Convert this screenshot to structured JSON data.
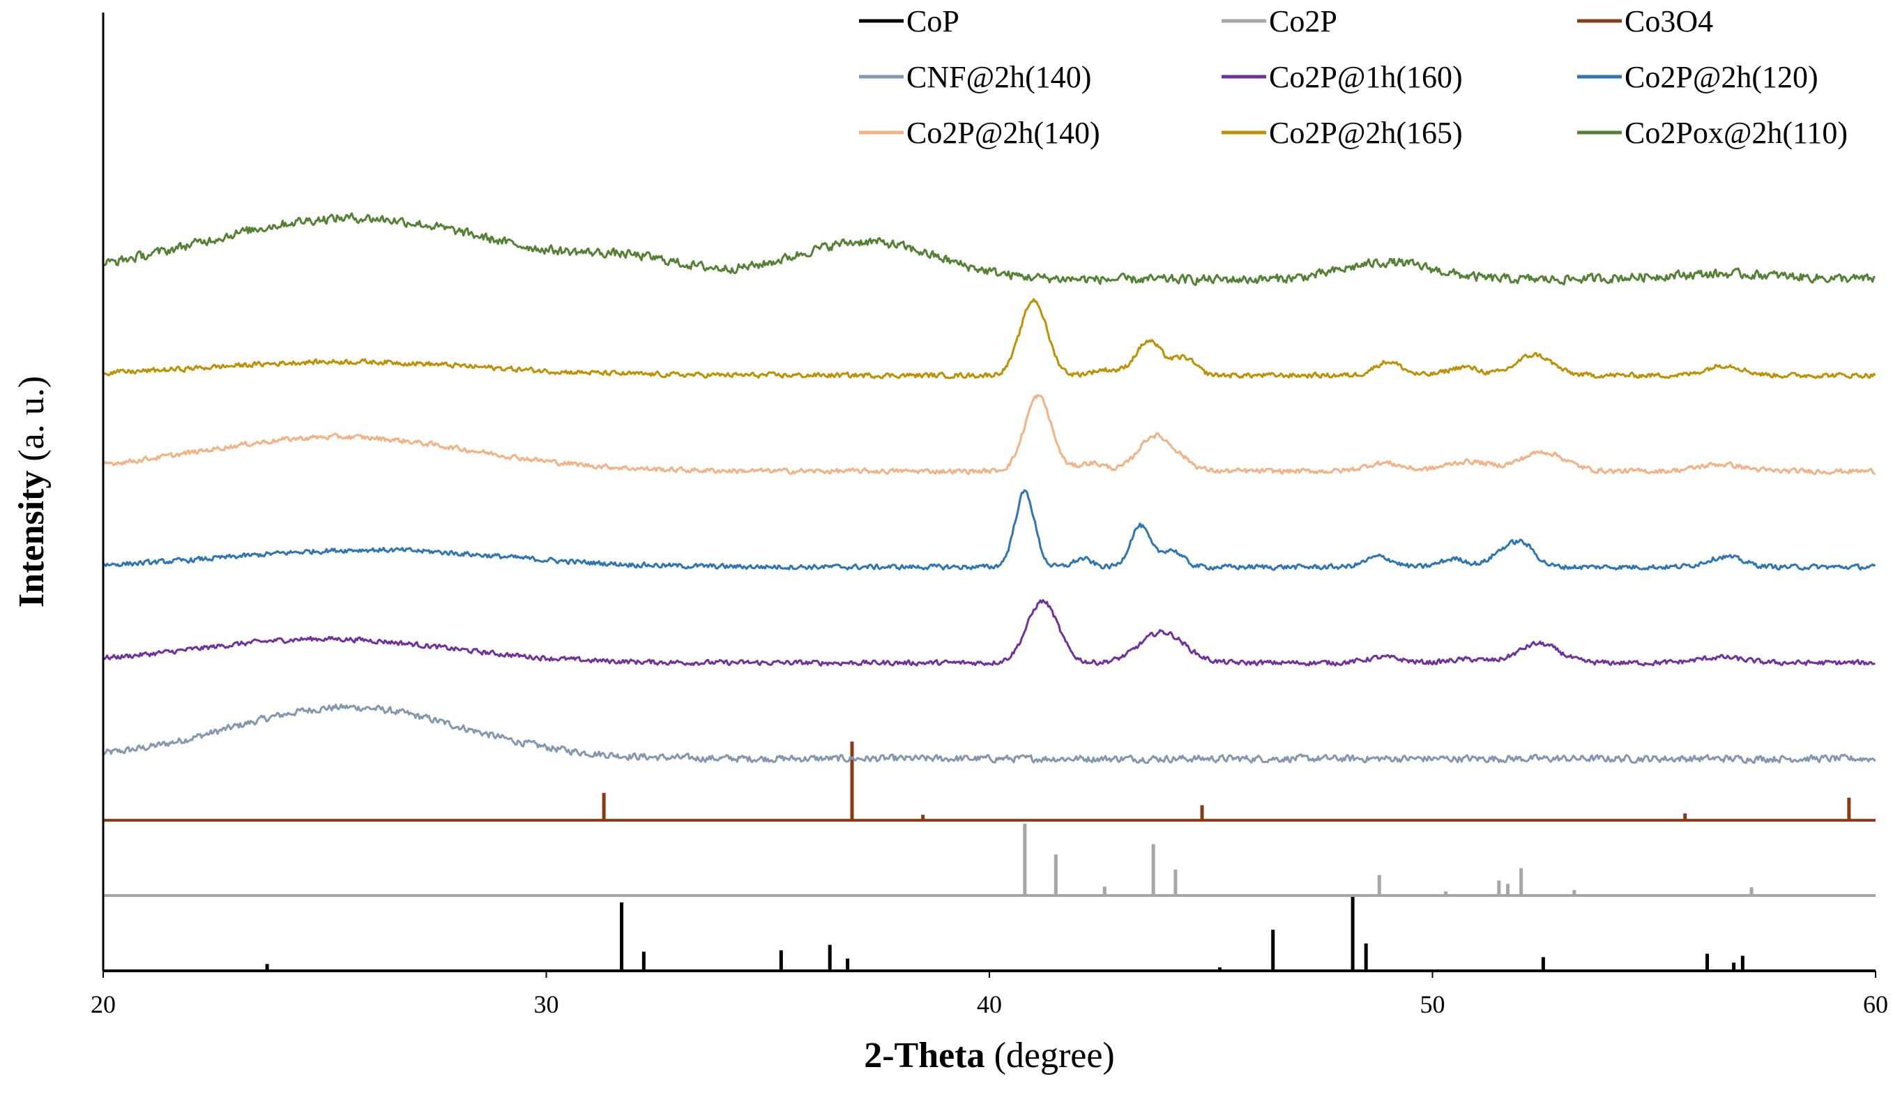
{
  "chart_data": {
    "type": "line",
    "title": "",
    "xlabel_bold": "2-Theta",
    "xlabel_rest": " (degree)",
    "ylabel_bold": "Intensity",
    "ylabel_rest": " (a. u.)",
    "xlim": [
      20,
      60
    ],
    "xticks": [
      20,
      30,
      40,
      50,
      60
    ],
    "legend_position": "top-right",
    "ylim": [
      0,
      14
    ],
    "series": [
      {
        "name": "CoP",
        "color": "#000000",
        "kind": "stick",
        "baseline": 0,
        "sticks": [
          [
            23.7,
            0.1
          ],
          [
            31.7,
            1.0
          ],
          [
            32.2,
            0.28
          ],
          [
            35.3,
            0.3
          ],
          [
            36.4,
            0.38
          ],
          [
            36.8,
            0.18
          ],
          [
            45.2,
            0.05
          ],
          [
            46.4,
            0.6
          ],
          [
            48.2,
            1.1
          ],
          [
            48.5,
            0.4
          ],
          [
            52.5,
            0.2
          ],
          [
            56.2,
            0.25
          ],
          [
            56.8,
            0.12
          ],
          [
            57.0,
            0.22
          ]
        ]
      },
      {
        "name": "Co2P",
        "color": "#a6a6a6",
        "kind": "stick",
        "baseline": 1.1,
        "sticks": [
          [
            40.8,
            1.05
          ],
          [
            41.5,
            0.6
          ],
          [
            42.6,
            0.13
          ],
          [
            43.7,
            0.75
          ],
          [
            44.2,
            0.38
          ],
          [
            48.8,
            0.3
          ],
          [
            50.3,
            0.06
          ],
          [
            51.5,
            0.22
          ],
          [
            51.7,
            0.17
          ],
          [
            52.0,
            0.4
          ],
          [
            53.2,
            0.08
          ],
          [
            57.2,
            0.12
          ]
        ]
      },
      {
        "name": "Co3O4",
        "color": "#8b3a14",
        "kind": "stick",
        "baseline": 2.2,
        "sticks": [
          [
            31.3,
            0.4
          ],
          [
            36.9,
            1.15
          ],
          [
            38.5,
            0.08
          ],
          [
            44.8,
            0.22
          ],
          [
            55.7,
            0.1
          ],
          [
            59.4,
            0.33
          ]
        ]
      },
      {
        "name": "CNF@2h(140)",
        "color": "#8497b0",
        "kind": "xrd",
        "baseline": 3.1,
        "noise": 0.07,
        "humps": [
          [
            25.5,
            0.75,
            2.6
          ]
        ],
        "peaks": []
      },
      {
        "name": "Co2P@1h(160)",
        "color": "#7030a0",
        "kind": "xrd",
        "baseline": 4.5,
        "noise": 0.05,
        "humps": [
          [
            25,
            0.35,
            2.8
          ],
          [
            30,
            0.0,
            1.0
          ]
        ],
        "peaks": [
          [
            41.2,
            0.9,
            0.35
          ],
          [
            43.9,
            0.45,
            0.5
          ],
          [
            48.9,
            0.08,
            0.4
          ],
          [
            50.8,
            0.05,
            0.4
          ],
          [
            52.4,
            0.28,
            0.45
          ],
          [
            56.5,
            0.08,
            0.5
          ]
        ]
      },
      {
        "name": "Co2P@2h(120)",
        "color": "#2e75b6",
        "kind": "xrd",
        "baseline": 5.9,
        "noise": 0.05,
        "humps": [
          [
            26,
            0.25,
            3.0
          ]
        ],
        "peaks": [
          [
            40.8,
            1.1,
            0.22
          ],
          [
            42.1,
            0.12,
            0.2
          ],
          [
            43.4,
            0.6,
            0.22
          ],
          [
            44.1,
            0.25,
            0.25
          ],
          [
            48.8,
            0.15,
            0.3
          ],
          [
            50.5,
            0.12,
            0.3
          ],
          [
            51.5,
            0.15,
            0.25
          ],
          [
            52.0,
            0.35,
            0.3
          ],
          [
            56.6,
            0.15,
            0.4
          ]
        ]
      },
      {
        "name": "Co2P@2h(140)",
        "color": "#f4b183",
        "kind": "xrd",
        "baseline": 7.3,
        "noise": 0.05,
        "humps": [
          [
            25.3,
            0.5,
            3.0
          ]
        ],
        "peaks": [
          [
            41.1,
            1.1,
            0.3
          ],
          [
            42.3,
            0.12,
            0.3
          ],
          [
            43.7,
            0.5,
            0.35
          ],
          [
            44.3,
            0.15,
            0.3
          ],
          [
            48.9,
            0.12,
            0.4
          ],
          [
            50.8,
            0.14,
            0.5
          ],
          [
            52.5,
            0.28,
            0.5
          ],
          [
            56.5,
            0.1,
            0.5
          ]
        ]
      },
      {
        "name": "Co2P@2h(165)",
        "color": "#bf9000",
        "kind": "xrd",
        "baseline": 8.7,
        "noise": 0.05,
        "humps": [
          [
            25.5,
            0.2,
            3.0
          ]
        ],
        "peaks": [
          [
            41.0,
            1.1,
            0.3
          ],
          [
            42.6,
            0.08,
            0.3
          ],
          [
            43.6,
            0.5,
            0.3
          ],
          [
            44.4,
            0.25,
            0.25
          ],
          [
            49.0,
            0.2,
            0.3
          ],
          [
            50.7,
            0.12,
            0.35
          ],
          [
            52.3,
            0.3,
            0.4
          ],
          [
            56.6,
            0.15,
            0.4
          ]
        ]
      },
      {
        "name": "Co2Pox@2h(110)",
        "color": "#548235",
        "kind": "xrd",
        "baseline": 10.1,
        "noise": 0.09,
        "humps": [
          [
            25.6,
            0.9,
            3.4
          ],
          [
            32.0,
            0.2,
            1.2
          ],
          [
            37.2,
            0.55,
            1.6
          ],
          [
            49.0,
            0.25,
            1.0
          ],
          [
            56.5,
            0.08,
            1.5
          ]
        ],
        "peaks": []
      }
    ]
  }
}
